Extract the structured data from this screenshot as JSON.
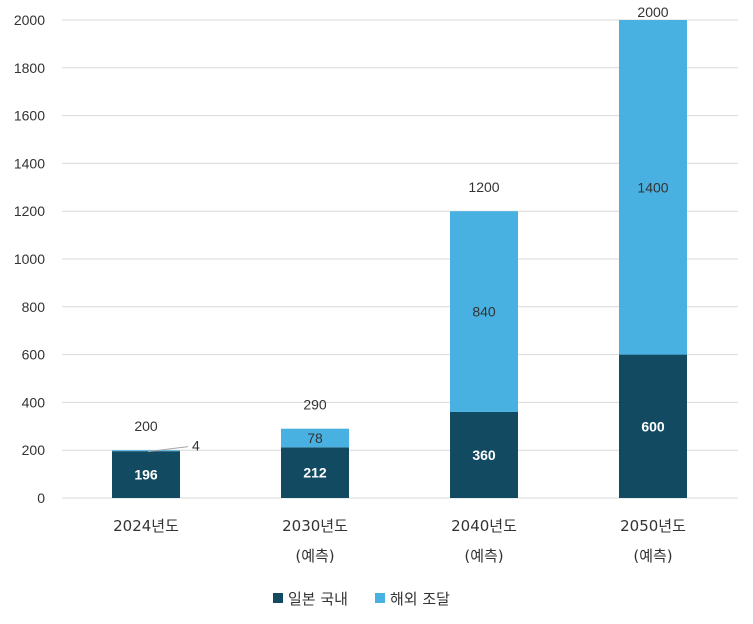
{
  "chart_data": {
    "type": "bar",
    "stacked": true,
    "categories": [
      {
        "line1": "2024년도",
        "line2": ""
      },
      {
        "line1": "2030년도",
        "line2": "(예측)"
      },
      {
        "line1": "2040년도",
        "line2": "(예측)"
      },
      {
        "line1": "2050년도",
        "line2": "(예측)"
      }
    ],
    "series": [
      {
        "name": "일본 국내",
        "values": [
          196,
          212,
          360,
          600
        ],
        "color": "#124A62"
      },
      {
        "name": "해외 조달",
        "values": [
          4,
          78,
          840,
          1400
        ],
        "color": "#49B1E1"
      }
    ],
    "totals": [
      200,
      290,
      1200,
      2000
    ],
    "ylim": [
      0,
      2000
    ],
    "yticks": [
      0,
      200,
      400,
      600,
      800,
      1000,
      1200,
      1400,
      1600,
      1800,
      2000
    ],
    "title": "",
    "xlabel": "",
    "ylabel": "",
    "grid": true,
    "legend_position": "bottom"
  }
}
